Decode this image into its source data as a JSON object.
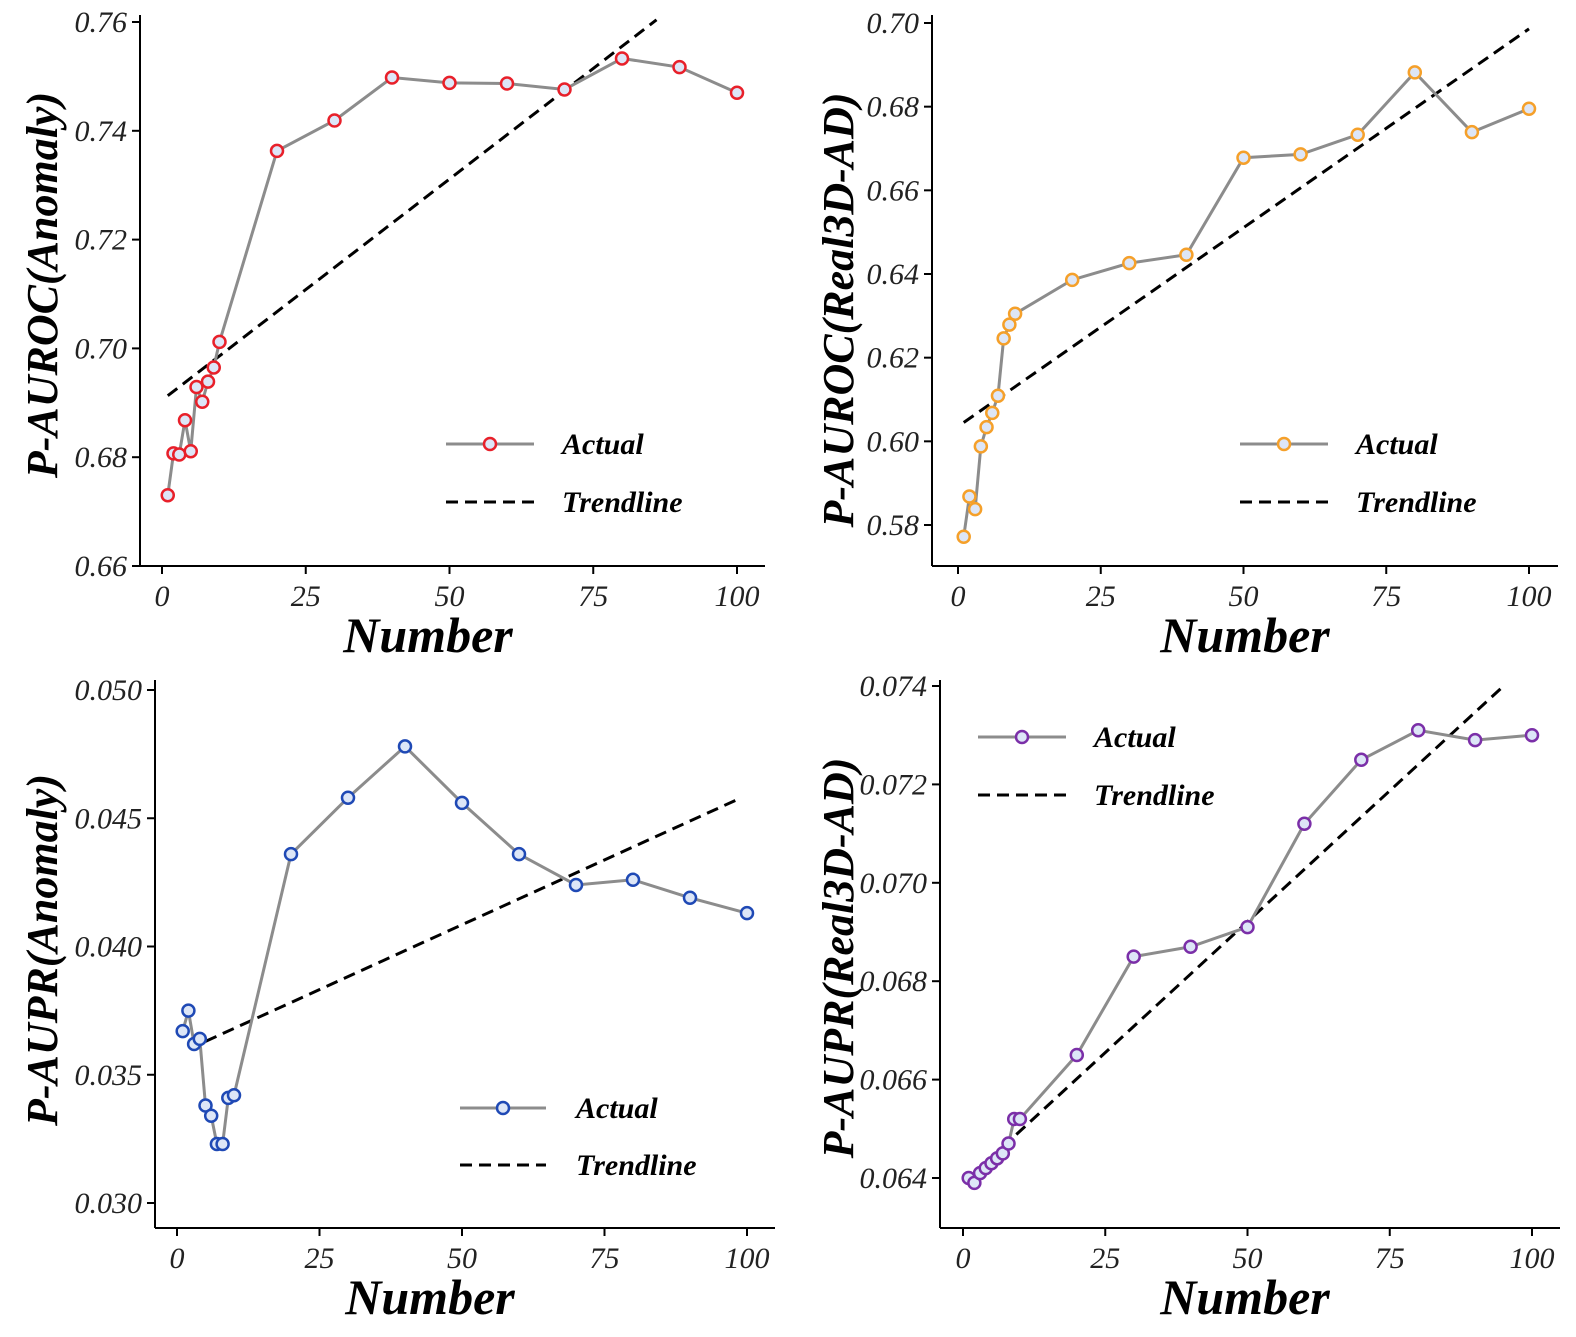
{
  "chart_data": [
    {
      "type": "line",
      "xlabel": "Number",
      "ylabel": "P-AUROC(Anomaly)",
      "xlim": [
        0,
        100
      ],
      "ylim": [
        0.66,
        0.76
      ],
      "xticks": [
        "0",
        "25",
        "50",
        "75",
        "100"
      ],
      "yticks": [
        "0.66",
        "0.68",
        "0.70",
        "0.72",
        "0.74",
        "0.76"
      ],
      "legend": {
        "placement": "bottom-right",
        "entries": [
          "Actual",
          "Trendline"
        ]
      },
      "series": [
        {
          "name": "Actual",
          "color": "#e8202a",
          "x": [
            1,
            2,
            3,
            4,
            5,
            6,
            7,
            8,
            9,
            10,
            20,
            30,
            40,
            50,
            60,
            70,
            80,
            90,
            100
          ],
          "y": [
            0.673,
            0.6807,
            0.6805,
            0.6868,
            0.6811,
            0.6929,
            0.6902,
            0.6939,
            0.6965,
            0.7012,
            0.7363,
            0.7419,
            0.7498,
            0.7488,
            0.7487,
            0.7476,
            0.7533,
            0.7517,
            0.747
          ]
        },
        {
          "name": "Trendline",
          "color": "#000000",
          "dashed": true,
          "x": [
            1,
            86
          ],
          "y": [
            0.6913,
            0.7604
          ]
        }
      ]
    },
    {
      "type": "line",
      "xlabel": "Number",
      "ylabel": "P-AUROC(Real3D-AD)",
      "xlim": [
        0,
        100
      ],
      "ylim": [
        0.57,
        0.7
      ],
      "xticks": [
        "0",
        "25",
        "50",
        "75",
        "100"
      ],
      "yticks": [
        "0.58",
        "0.60",
        "0.62",
        "0.64",
        "0.66",
        "0.68",
        "0.70"
      ],
      "legend": {
        "placement": "bottom-right",
        "entries": [
          "Actual",
          "Trendline"
        ]
      },
      "series": [
        {
          "name": "Actual",
          "color": "#f5a02a",
          "x": [
            1,
            2,
            3,
            4,
            5,
            6,
            7,
            8,
            9,
            10,
            20,
            30,
            40,
            50,
            60,
            70,
            80,
            90,
            100
          ],
          "y": [
            0.5772,
            0.5868,
            0.5838,
            0.5988,
            0.6034,
            0.6068,
            0.6109,
            0.6246,
            0.6279,
            0.6305,
            0.6386,
            0.6426,
            0.6446,
            0.6678,
            0.6686,
            0.6733,
            0.6882,
            0.6739,
            0.6795
          ]
        },
        {
          "name": "Trendline",
          "color": "#000000",
          "dashed": true,
          "x": [
            1,
            100
          ],
          "y": [
            0.6045,
            0.6986
          ]
        }
      ]
    },
    {
      "type": "line",
      "xlabel": "Number",
      "ylabel": "P-AUPR(Anomaly)",
      "xlim": [
        0,
        100
      ],
      "ylim": [
        0.029,
        0.05
      ],
      "xticks": [
        "0",
        "25",
        "50",
        "75",
        "100"
      ],
      "yticks": [
        "0.030",
        "0.035",
        "0.040",
        "0.045",
        "0.050"
      ],
      "legend": {
        "placement": "bottom-right",
        "entries": [
          "Actual",
          "Trendline"
        ]
      },
      "series": [
        {
          "name": "Actual",
          "color": "#1f49b5",
          "x": [
            1,
            2,
            3,
            4,
            5,
            6,
            7,
            8,
            9,
            10,
            20,
            30,
            40,
            50,
            60,
            70,
            80,
            90,
            100
          ],
          "y": [
            0.0367,
            0.0375,
            0.0362,
            0.0364,
            0.0338,
            0.0334,
            0.0323,
            0.0323,
            0.0341,
            0.0342,
            0.0436,
            0.0458,
            0.0478,
            0.0456,
            0.0436,
            0.0424,
            0.0426,
            0.0419,
            0.0413
          ]
        },
        {
          "name": "Trendline",
          "color": "#000000",
          "dashed": true,
          "x": [
            5,
            99
          ],
          "y": [
            0.0363,
            0.0458
          ]
        }
      ]
    },
    {
      "type": "line",
      "xlabel": "Number",
      "ylabel": "P-AUPR(Real3D-AD)",
      "xlim": [
        0,
        100
      ],
      "ylim": [
        0.063,
        0.074
      ],
      "xticks": [
        "0",
        "25",
        "50",
        "75",
        "100"
      ],
      "yticks": [
        "0.064",
        "0.066",
        "0.068",
        "0.070",
        "0.072",
        "0.074"
      ],
      "legend": {
        "placement": "top-left",
        "entries": [
          "Actual",
          "Trendline"
        ]
      },
      "series": [
        {
          "name": "Actual",
          "color": "#7b2fa8",
          "x": [
            1,
            2,
            3,
            4,
            5,
            6,
            7,
            8,
            9,
            10,
            20,
            30,
            40,
            50,
            60,
            70,
            80,
            90,
            100
          ],
          "y": [
            0.064,
            0.0639,
            0.0641,
            0.0642,
            0.0643,
            0.0644,
            0.0645,
            0.0647,
            0.0652,
            0.0652,
            0.0665,
            0.0685,
            0.0687,
            0.0691,
            0.0712,
            0.0725,
            0.0731,
            0.0729,
            0.073
          ]
        },
        {
          "name": "Trendline",
          "color": "#000000",
          "dashed": true,
          "x": [
            2,
            95
          ],
          "y": [
            0.0641,
            0.074
          ]
        }
      ]
    }
  ]
}
